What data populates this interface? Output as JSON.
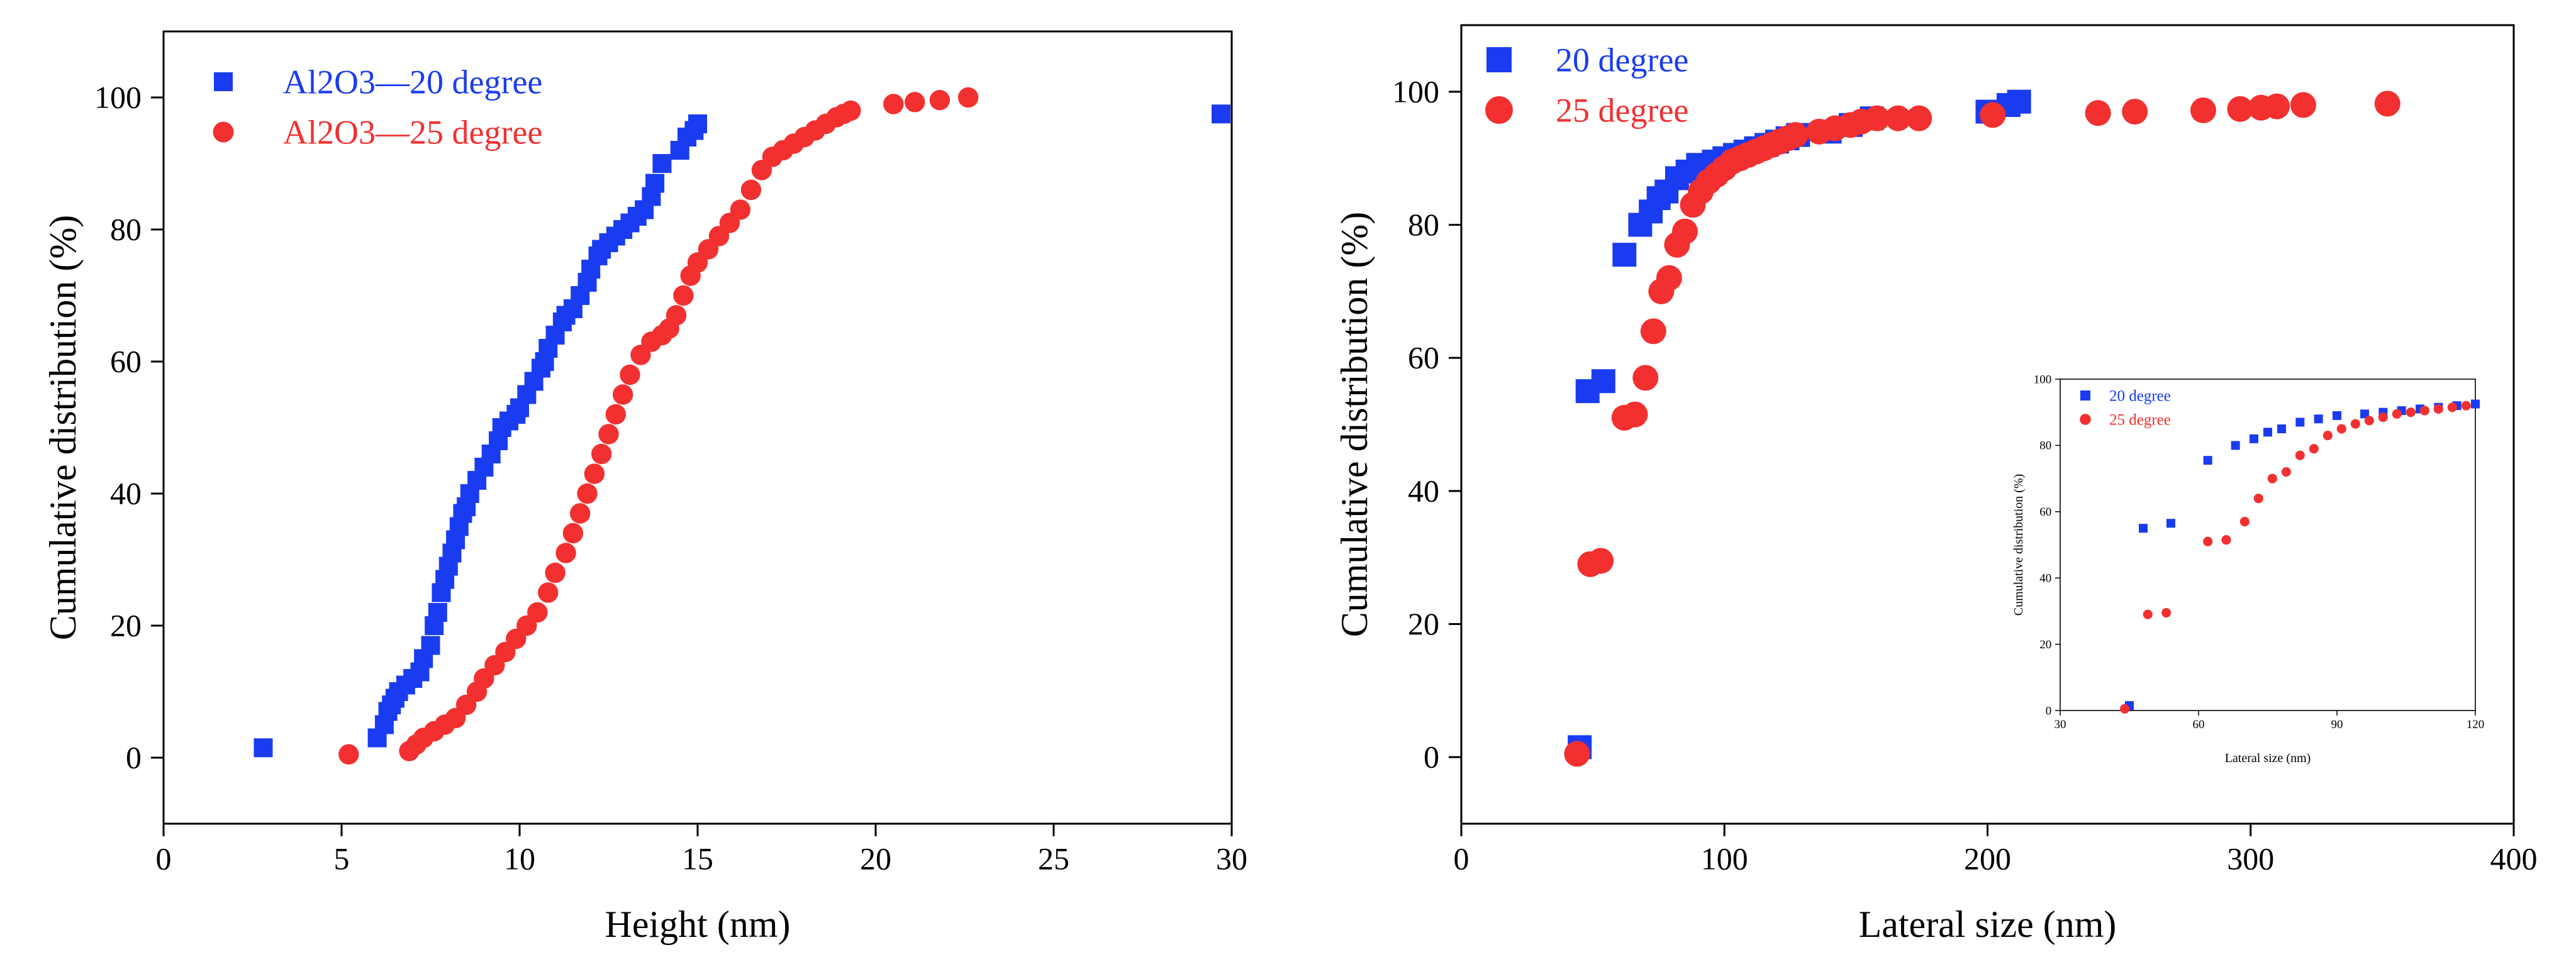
{
  "chart_data": [
    {
      "type": "scatter",
      "xlabel": "Height (nm)",
      "ylabel": "Cumulative distribution (%)",
      "xlim": [
        0,
        30
      ],
      "ylim": [
        -10,
        110
      ],
      "xticks": [
        "0",
        "5",
        "10",
        "15",
        "20",
        "25",
        "30"
      ],
      "yticks": [
        "0",
        "20",
        "40",
        "60",
        "80",
        "100"
      ],
      "legend_position": "top-left",
      "series": [
        {
          "name": "Al2O3—20 degree",
          "marker": "square",
          "color": "#1a3cf0",
          "x": [
            2.8,
            6.0,
            6.2,
            6.3,
            6.4,
            6.5,
            6.6,
            6.8,
            7.0,
            7.2,
            7.3,
            7.5,
            7.6,
            7.7,
            7.8,
            7.9,
            8.0,
            8.1,
            8.2,
            8.3,
            8.4,
            8.5,
            8.6,
            8.8,
            9.0,
            9.2,
            9.4,
            9.5,
            9.7,
            9.9,
            10.0,
            10.2,
            10.4,
            10.6,
            10.7,
            10.8,
            11.0,
            11.2,
            11.3,
            11.5,
            11.7,
            11.9,
            12.0,
            12.2,
            12.3,
            12.5,
            12.7,
            12.9,
            13.1,
            13.3,
            13.5,
            13.7,
            13.8,
            14.0,
            14.5,
            14.7,
            14.9,
            15.0,
            29.7
          ],
          "y": [
            1.5,
            3,
            5,
            7,
            8,
            9,
            10,
            11,
            12,
            13,
            15,
            17,
            20,
            22,
            25,
            27,
            29,
            31,
            33,
            35,
            37,
            38,
            40,
            42,
            44,
            46,
            48,
            50,
            51,
            52,
            53,
            55,
            57,
            59,
            60,
            62,
            64,
            66,
            67,
            68,
            70,
            72,
            74,
            76,
            77,
            78,
            79,
            80,
            81,
            82,
            83,
            85,
            87,
            90,
            92,
            94,
            95,
            96,
            97.5
          ]
        },
        {
          "name": "Al2O3—25 degree",
          "marker": "circle",
          "color": "#f23030",
          "x": [
            5.2,
            6.9,
            7.1,
            7.3,
            7.6,
            7.9,
            8.2,
            8.5,
            8.8,
            9.0,
            9.3,
            9.6,
            9.9,
            10.2,
            10.5,
            10.8,
            11.0,
            11.3,
            11.5,
            11.7,
            11.9,
            12.1,
            12.3,
            12.5,
            12.7,
            12.9,
            13.1,
            13.4,
            13.7,
            14.0,
            14.2,
            14.4,
            14.6,
            14.8,
            15.0,
            15.3,
            15.6,
            15.9,
            16.2,
            16.5,
            16.8,
            17.1,
            17.4,
            17.7,
            18.0,
            18.3,
            18.6,
            18.9,
            19.1,
            19.3,
            20.5,
            21.1,
            21.8,
            22.6
          ],
          "y": [
            0.5,
            1,
            2,
            3,
            4,
            5,
            6,
            8,
            10,
            12,
            14,
            16,
            18,
            20,
            22,
            25,
            28,
            31,
            34,
            37,
            40,
            43,
            46,
            49,
            52,
            55,
            58,
            61,
            63,
            64,
            65,
            67,
            70,
            73,
            75,
            77,
            79,
            81,
            83,
            86,
            89,
            91,
            92,
            93,
            94,
            95,
            96,
            97,
            97.5,
            98,
            99,
            99.3,
            99.6,
            100
          ]
        }
      ]
    },
    {
      "type": "scatter",
      "xlabel": "Lateral size (nm)",
      "ylabel": "Cumulative distribution (%)",
      "xlim": [
        0,
        400
      ],
      "ylim": [
        -10,
        110
      ],
      "xticks": [
        "0",
        "100",
        "200",
        "300",
        "400"
      ],
      "yticks": [
        "0",
        "20",
        "40",
        "60",
        "80",
        "100"
      ],
      "legend_position": "top-left",
      "series": [
        {
          "name": "20 degree",
          "marker": "square",
          "color": "#1a3cf0",
          "x": [
            45,
            48,
            54,
            62,
            68,
            72,
            75,
            78,
            82,
            86,
            90,
            96,
            100,
            104,
            108,
            112,
            116,
            120,
            124,
            128,
            140,
            148,
            156,
            200,
            208,
            212
          ],
          "y": [
            1.5,
            55,
            56.5,
            75.5,
            80,
            82,
            84,
            85,
            87,
            88,
            89,
            89.5,
            90,
            90.5,
            91,
            91.5,
            92,
            92.5,
            93,
            93.5,
            94,
            95,
            96,
            97,
            98,
            98.5
          ]
        },
        {
          "name": "25 degree",
          "marker": "circle",
          "color": "#f23030",
          "x": [
            44,
            49,
            53,
            62,
            66,
            70,
            73,
            76,
            79,
            82,
            85,
            88,
            91,
            94,
            97,
            100,
            103,
            106,
            109,
            112,
            115,
            118,
            121,
            124,
            127,
            136,
            142,
            148,
            152,
            158,
            166,
            174,
            202,
            242,
            256,
            282,
            296,
            304,
            310,
            320,
            352
          ],
          "y": [
            0.5,
            29,
            29.5,
            51,
            51.5,
            57,
            64,
            70,
            72,
            77,
            79,
            83,
            85,
            86.5,
            87.5,
            88.5,
            89.5,
            90,
            90.5,
            91,
            91.5,
            92,
            92.5,
            93,
            93.5,
            94,
            94.5,
            95,
            95.5,
            96,
            96,
            96,
            96.5,
            96.8,
            97,
            97.2,
            97.4,
            97.6,
            97.8,
            98,
            98.2
          ]
        }
      ],
      "inset": {
        "xlabel": "Lateral size (nm)",
        "ylabel": "Cumulative distribution (%)",
        "xlim": [
          30,
          120
        ],
        "ylim": [
          0,
          100
        ],
        "xticks": [
          "30",
          "60",
          "90",
          "120"
        ],
        "yticks": [
          "0",
          "20",
          "40",
          "60",
          "80",
          "100"
        ],
        "legend_position": "top-left"
      }
    }
  ]
}
